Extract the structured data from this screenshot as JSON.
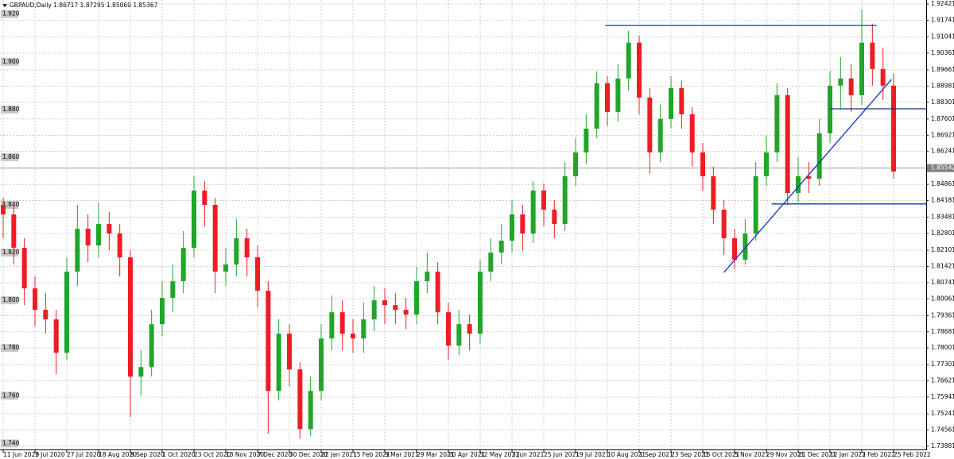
{
  "chart_data": {
    "type": "candlestick",
    "title": "GBPAUD,Daily  1.86717 1.87295 1.85069 1.85367",
    "categories": [
      "11 Jun 2020",
      null,
      null,
      "3 Jul 2020",
      null,
      null,
      "27 Jul 2020",
      null,
      null,
      "18 Aug 2020",
      null,
      null,
      "9 Sep 2020",
      null,
      null,
      "1 Oct 2020",
      null,
      null,
      "23 Oct 2020",
      null,
      null,
      "13 Nov 2020",
      null,
      null,
      "7 Dec 2020",
      null,
      null,
      "30 Dec 2020",
      null,
      null,
      "22 Jan 2021",
      null,
      null,
      "15 Feb 2021",
      null,
      null,
      "9 Mar 2021",
      null,
      null,
      "29 Mar 2021",
      null,
      null,
      "20 Apr 2021",
      null,
      null,
      "12 May 2021",
      null,
      null,
      "3 Jun 2021",
      null,
      null,
      "25 Jun 2021",
      null,
      null,
      "19 Jul 2021",
      null,
      null,
      "10 Aug 2021",
      null,
      null,
      "1 Sep 2021",
      null,
      null,
      "23 Sep 2021",
      null,
      null,
      "15 Oct 2021",
      null,
      null,
      "5 Nov 2021",
      null,
      null,
      "29 Nov 2021",
      null,
      null,
      "21 Dec 2021",
      null,
      null,
      "12 Jan 2022",
      null,
      null,
      "3 Feb 2022",
      null,
      null,
      "25 Feb 2022"
    ],
    "open": [
      1.84,
      1.836,
      1.822,
      1.805,
      1.796,
      1.792,
      1.778,
      1.812,
      1.83,
      1.823,
      1.832,
      1.828,
      1.818,
      1.768,
      1.772,
      1.79,
      1.801,
      1.808,
      1.822,
      1.846,
      1.84,
      1.812,
      1.815,
      1.826,
      1.818,
      1.804,
      1.762,
      1.786,
      1.771,
      1.746,
      1.762,
      1.784,
      1.795,
      1.786,
      1.784,
      1.792,
      1.8,
      1.798,
      1.796,
      1.794,
      1.808,
      1.812,
      1.795,
      1.781,
      1.79,
      1.786,
      1.812,
      1.82,
      1.825,
      1.836,
      1.828,
      1.846,
      1.838,
      1.832,
      1.852,
      1.862,
      1.872,
      1.891,
      1.879,
      1.893,
      1.908,
      1.885,
      1.862,
      1.876,
      1.889,
      1.878,
      1.862,
      1.852,
      1.838,
      1.826,
      1.817,
      1.828,
      1.852,
      1.862,
      1.886,
      1.845,
      1.852,
      1.851,
      1.87,
      1.89,
      1.893,
      1.886,
      1.908,
      1.897,
      1.89
    ],
    "high": [
      1.843,
      1.84,
      1.826,
      1.81,
      1.803,
      1.796,
      1.818,
      1.84,
      1.836,
      1.841,
      1.837,
      1.832,
      1.821,
      1.779,
      1.796,
      1.808,
      1.815,
      1.829,
      1.852,
      1.85,
      1.843,
      1.822,
      1.834,
      1.83,
      1.823,
      1.808,
      1.792,
      1.79,
      1.774,
      1.768,
      1.79,
      1.802,
      1.8,
      1.792,
      1.799,
      1.806,
      1.805,
      1.803,
      1.801,
      1.814,
      1.82,
      1.816,
      1.799,
      1.796,
      1.794,
      1.817,
      1.826,
      1.832,
      1.842,
      1.84,
      1.85,
      1.849,
      1.842,
      1.858,
      1.868,
      1.878,
      1.896,
      1.894,
      1.899,
      1.913,
      1.911,
      1.889,
      1.882,
      1.894,
      1.892,
      1.881,
      1.866,
      1.856,
      1.842,
      1.83,
      1.834,
      1.858,
      1.869,
      1.891,
      1.889,
      1.86,
      1.858,
      1.876,
      1.896,
      1.902,
      1.899,
      1.922,
      1.916,
      1.906,
      1.895
    ],
    "low": [
      1.826,
      1.815,
      1.798,
      1.789,
      1.786,
      1.769,
      1.775,
      1.806,
      1.816,
      1.818,
      1.821,
      1.81,
      1.751,
      1.76,
      1.768,
      1.785,
      1.795,
      1.803,
      1.818,
      1.831,
      1.803,
      1.806,
      1.81,
      1.81,
      1.797,
      1.744,
      1.758,
      1.764,
      1.742,
      1.743,
      1.758,
      1.779,
      1.779,
      1.778,
      1.778,
      1.787,
      1.79,
      1.79,
      1.788,
      1.79,
      1.803,
      1.79,
      1.775,
      1.777,
      1.779,
      1.782,
      1.808,
      1.815,
      1.82,
      1.821,
      1.824,
      1.831,
      1.826,
      1.829,
      1.848,
      1.857,
      1.868,
      1.873,
      1.875,
      1.888,
      1.878,
      1.853,
      1.858,
      1.872,
      1.872,
      1.856,
      1.846,
      1.832,
      1.819,
      1.813,
      1.815,
      1.825,
      1.848,
      1.858,
      1.84,
      1.841,
      1.845,
      1.848,
      1.866,
      1.88,
      1.879,
      1.882,
      1.89,
      1.884,
      1.851
    ],
    "close": [
      1.836,
      1.822,
      1.805,
      1.796,
      1.792,
      1.778,
      1.812,
      1.83,
      1.823,
      1.832,
      1.828,
      1.818,
      1.768,
      1.772,
      1.79,
      1.801,
      1.808,
      1.822,
      1.846,
      1.84,
      1.812,
      1.815,
      1.826,
      1.818,
      1.804,
      1.762,
      1.786,
      1.771,
      1.746,
      1.762,
      1.784,
      1.795,
      1.786,
      1.784,
      1.792,
      1.8,
      1.798,
      1.796,
      1.794,
      1.808,
      1.812,
      1.795,
      1.781,
      1.79,
      1.786,
      1.812,
      1.82,
      1.825,
      1.836,
      1.828,
      1.846,
      1.838,
      1.832,
      1.852,
      1.862,
      1.872,
      1.891,
      1.879,
      1.893,
      1.908,
      1.885,
      1.862,
      1.876,
      1.889,
      1.878,
      1.862,
      1.852,
      1.838,
      1.826,
      1.817,
      1.828,
      1.852,
      1.862,
      1.886,
      1.845,
      1.852,
      1.851,
      1.87,
      1.89,
      1.893,
      1.886,
      1.908,
      1.897,
      1.89,
      1.854
    ],
    "up_color": "#21a52a",
    "down_color": "#ee1c25",
    "ylim": [
      1.73613,
      1.9259
    ],
    "yticks": [
      1.92421,
      1.91741,
      1.91041,
      1.90361,
      1.89661,
      1.88981,
      1.88301,
      1.87601,
      1.86921,
      1.86241,
      1.84861,
      1.84181,
      1.83481,
      1.82801,
      1.82101,
      1.81421,
      1.80741,
      1.80061,
      1.79361,
      1.78681,
      1.78001,
      1.77301,
      1.76621,
      1.75941,
      1.75241,
      1.74561,
      1.73881
    ],
    "price_line": 1.85542,
    "levels": [
      {
        "value": 1.92,
        "label": "1.920"
      },
      {
        "value": 1.9,
        "label": "1.900"
      },
      {
        "value": 1.88,
        "label": "1.880"
      },
      {
        "value": 1.86,
        "label": "1.860"
      },
      {
        "value": 1.84,
        "label": "1.840"
      },
      {
        "value": 1.82,
        "label": "1.820"
      },
      {
        "value": 1.8,
        "label": "1.800"
      },
      {
        "value": 1.78,
        "label": "1.780"
      },
      {
        "value": 1.76,
        "label": "1.760"
      },
      {
        "value": 1.74,
        "label": "1.740"
      }
    ],
    "lines": [
      {
        "color": "#1530d0",
        "x": [
          56.8,
          82.4
        ],
        "y": [
          1.9152,
          1.9152
        ]
      },
      {
        "color": "#1530d0",
        "x": [
          72.5,
          87.1
        ],
        "y": [
          1.8404,
          1.8404
        ]
      },
      {
        "color": "#1a2a80",
        "x": [
          78,
          87.1
        ],
        "y": [
          1.8803,
          1.8803
        ]
      },
      {
        "color": "#1530d0",
        "x": [
          68,
          83.8
        ],
        "y": [
          1.8117,
          1.8926
        ]
      }
    ],
    "grid": true
  }
}
